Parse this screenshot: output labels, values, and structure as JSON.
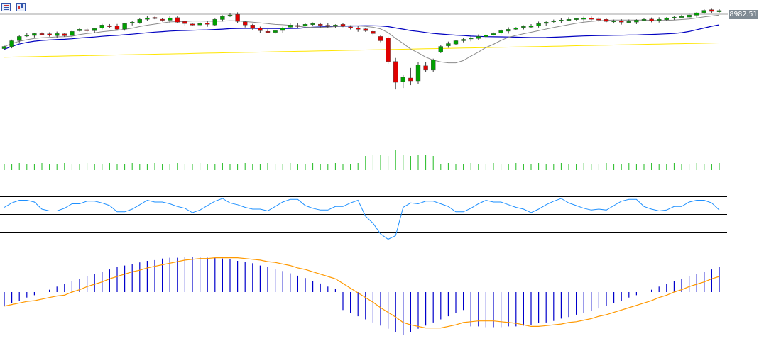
{
  "toolbar": {
    "icons": [
      "list-icon",
      "chart-icon"
    ]
  },
  "price_label": "8982.51",
  "colors": {
    "bull": "#00a000",
    "bear": "#e00000",
    "wick": "#404040",
    "ma_fast": "#8c8c8c",
    "ma_mid": "#0000c0",
    "ma_slow": "#ffe600",
    "volume": "#22bb22",
    "rsi": "#1e90ff",
    "rsi_levels": "#000000",
    "macd_hist": "#0000cc",
    "macd_signal": "#ff9900",
    "price_line": "#a0a0a0"
  },
  "chart_data": [
    {
      "type": "candlestick",
      "series_name": "",
      "ylim": [
        7000,
        9050
      ],
      "last_price": 8982.51,
      "candles": [],
      "moving_averages": [
        {
          "name": "",
          "color": "#8c8c8c",
          "values": []
        },
        {
          "name": "",
          "color": "#0000c0",
          "values": []
        },
        {
          "name": "",
          "color": "#ffe600",
          "values": []
        }
      ]
    },
    {
      "type": "bar",
      "series_name": "",
      "values": []
    },
    {
      "type": "line",
      "series_name": "",
      "levels": [
        70,
        50,
        30
      ],
      "ylim": [
        20,
        80
      ],
      "values": []
    },
    {
      "type": "bar",
      "series_name": "",
      "histogram": [],
      "signal": []
    }
  ]
}
